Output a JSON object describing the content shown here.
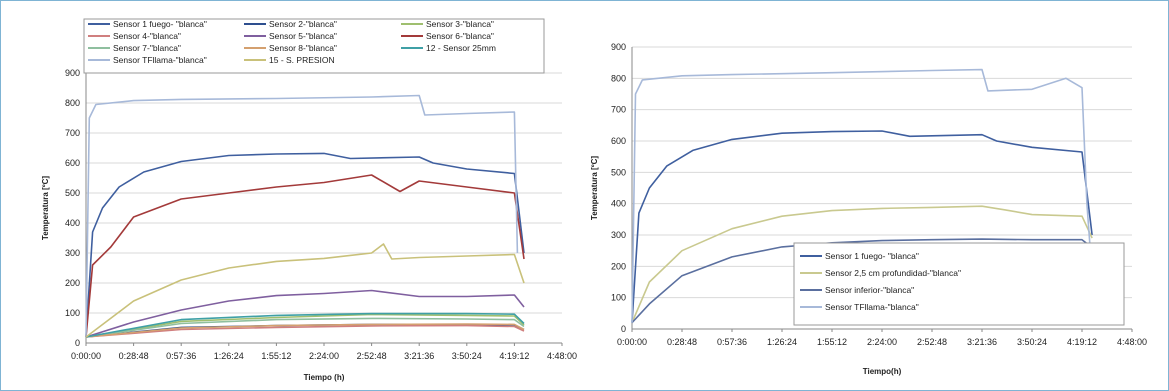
{
  "chart_data": [
    {
      "type": "line",
      "title": "",
      "xlabel": "Tiempo (h)",
      "ylabel": "Temperatura [ºC]",
      "ylim": [
        0,
        900
      ],
      "xlim_seconds": [
        0,
        17280
      ],
      "x_ticks": [
        "0:00:00",
        "0:28:48",
        "0:57:36",
        "1:26:24",
        "1:55:12",
        "2:24:00",
        "2:52:48",
        "3:21:36",
        "3:50:24",
        "4:19:12",
        "4:48:00"
      ],
      "y_ticks": [
        0,
        100,
        200,
        300,
        400,
        500,
        600,
        700,
        800,
        900
      ],
      "grid": true,
      "legend_position": "top",
      "series": [
        {
          "name": "Sensor 1 fuego- \"blanca\"",
          "color": "#3f5f9f",
          "points": [
            [
              "0:00:00",
              20
            ],
            [
              "0:04:00",
              370
            ],
            [
              "0:10:00",
              450
            ],
            [
              "0:20:00",
              520
            ],
            [
              "0:35:00",
              570
            ],
            [
              "0:57:36",
              605
            ],
            [
              "1:26:24",
              625
            ],
            [
              "1:55:12",
              630
            ],
            [
              "2:24:00",
              632
            ],
            [
              "2:40:00",
              615
            ],
            [
              "3:21:36",
              620
            ],
            [
              "3:30:00",
              600
            ],
            [
              "3:50:24",
              580
            ],
            [
              "4:19:12",
              565
            ],
            [
              "4:25:00",
              300
            ]
          ]
        },
        {
          "name": "Sensor 2-\"blanca\"",
          "color": "#2e4f8f",
          "points": [
            [
              "0:00:00",
              20
            ],
            [
              "0:57:36",
              52
            ],
            [
              "1:55:12",
              58
            ],
            [
              "2:52:48",
              62
            ],
            [
              "3:50:24",
              62
            ],
            [
              "4:19:12",
              60
            ],
            [
              "4:25:00",
              45
            ]
          ]
        },
        {
          "name": "Sensor 3-\"blanca\"",
          "color": "#9fbf6f",
          "points": [
            [
              "0:00:00",
              20
            ],
            [
              "0:57:36",
              72
            ],
            [
              "1:55:12",
              85
            ],
            [
              "2:52:48",
              95
            ],
            [
              "3:50:24",
              92
            ],
            [
              "4:19:12",
              90
            ],
            [
              "4:25:00",
              60
            ]
          ]
        },
        {
          "name": "Sensor 4-\"blanca\"",
          "color": "#d07f7f",
          "points": [
            [
              "0:00:00",
              20
            ],
            [
              "0:57:36",
              45
            ],
            [
              "1:55:12",
              52
            ],
            [
              "2:52:48",
              57
            ],
            [
              "3:50:24",
              58
            ],
            [
              "4:19:12",
              55
            ],
            [
              "4:25:00",
              40
            ]
          ]
        },
        {
          "name": "Sensor 5-\"blanca\"",
          "color": "#7f5f9f",
          "points": [
            [
              "0:00:00",
              20
            ],
            [
              "0:28:48",
              70
            ],
            [
              "0:57:36",
              110
            ],
            [
              "1:26:24",
              140
            ],
            [
              "1:55:12",
              158
            ],
            [
              "2:24:00",
              165
            ],
            [
              "2:52:48",
              175
            ],
            [
              "3:21:36",
              155
            ],
            [
              "3:50:24",
              155
            ],
            [
              "4:19:12",
              160
            ],
            [
              "4:25:00",
              120
            ]
          ]
        },
        {
          "name": "Sensor 6-\"blanca\"",
          "color": "#a33a3a",
          "points": [
            [
              "0:00:00",
              20
            ],
            [
              "0:04:00",
              260
            ],
            [
              "0:15:00",
              320
            ],
            [
              "0:28:48",
              420
            ],
            [
              "0:57:36",
              480
            ],
            [
              "1:26:24",
              500
            ],
            [
              "1:55:12",
              520
            ],
            [
              "2:24:00",
              535
            ],
            [
              "2:52:48",
              560
            ],
            [
              "3:10:00",
              505
            ],
            [
              "3:21:36",
              540
            ],
            [
              "3:50:24",
              520
            ],
            [
              "4:19:12",
              500
            ],
            [
              "4:25:00",
              280
            ]
          ]
        },
        {
          "name": "Sensor 7-\"blanca\"",
          "color": "#8fbf9f",
          "points": [
            [
              "0:00:00",
              20
            ],
            [
              "0:57:36",
              65
            ],
            [
              "1:55:12",
              78
            ],
            [
              "2:52:48",
              82
            ],
            [
              "3:50:24",
              80
            ],
            [
              "4:19:12",
              78
            ],
            [
              "4:25:00",
              55
            ]
          ]
        },
        {
          "name": "Sensor 8-\"blanca\"",
          "color": "#d4a06f",
          "points": [
            [
              "0:00:00",
              20
            ],
            [
              "0:57:36",
              50
            ],
            [
              "1:55:12",
              58
            ],
            [
              "2:52:48",
              62
            ],
            [
              "3:50:24",
              63
            ],
            [
              "4:19:12",
              62
            ],
            [
              "4:25:00",
              45
            ]
          ]
        },
        {
          "name": "12 - Sensor 25mm",
          "color": "#3fa0a6",
          "points": [
            [
              "0:00:00",
              20
            ],
            [
              "0:57:36",
              78
            ],
            [
              "1:55:12",
              92
            ],
            [
              "2:52:48",
              98
            ],
            [
              "3:50:24",
              98
            ],
            [
              "4:19:12",
              96
            ],
            [
              "4:25:00",
              65
            ]
          ]
        },
        {
          "name": "Sensor TFllama-\"blanca\"",
          "color": "#a7b9d9",
          "points": [
            [
              "0:00:00",
              20
            ],
            [
              "0:02:00",
              750
            ],
            [
              "0:06:00",
              795
            ],
            [
              "0:28:48",
              808
            ],
            [
              "0:57:36",
              812
            ],
            [
              "1:55:12",
              815
            ],
            [
              "2:52:48",
              820
            ],
            [
              "3:21:36",
              825
            ],
            [
              "3:25:00",
              760
            ],
            [
              "3:50:24",
              765
            ],
            [
              "4:19:12",
              770
            ],
            [
              "4:21:00",
              300
            ]
          ]
        },
        {
          "name": "15 - S. PRESION",
          "color": "#c9c17a",
          "points": [
            [
              "0:00:00",
              20
            ],
            [
              "0:28:48",
              140
            ],
            [
              "0:57:36",
              210
            ],
            [
              "1:26:24",
              250
            ],
            [
              "1:55:12",
              272
            ],
            [
              "2:24:00",
              282
            ],
            [
              "2:52:48",
              300
            ],
            [
              "3:00:00",
              330
            ],
            [
              "3:05:00",
              280
            ],
            [
              "3:21:36",
              285
            ],
            [
              "3:50:24",
              290
            ],
            [
              "4:19:12",
              295
            ],
            [
              "4:25:00",
              200
            ]
          ]
        }
      ]
    },
    {
      "type": "line",
      "title": "",
      "xlabel": "Tiempo(h)",
      "ylabel": "Temperatura [ºC]",
      "ylim": [
        0,
        900
      ],
      "xlim_seconds": [
        0,
        17280
      ],
      "x_ticks": [
        "0:00:00",
        "0:28:48",
        "0:57:36",
        "1:26:24",
        "1:55:12",
        "2:24:00",
        "2:52:48",
        "3:21:36",
        "3:50:24",
        "4:19:12",
        "4:48:00"
      ],
      "y_ticks": [
        0,
        100,
        200,
        300,
        400,
        500,
        600,
        700,
        800,
        900
      ],
      "grid": true,
      "legend_position": "bottom-right",
      "series": [
        {
          "name": "Sensor 1 fuego- \"blanca\"",
          "color": "#3f5f9f",
          "points": [
            [
              "0:00:00",
              20
            ],
            [
              "0:04:00",
              370
            ],
            [
              "0:10:00",
              450
            ],
            [
              "0:20:00",
              520
            ],
            [
              "0:35:00",
              570
            ],
            [
              "0:57:36",
              605
            ],
            [
              "1:26:24",
              625
            ],
            [
              "1:55:12",
              630
            ],
            [
              "2:24:00",
              632
            ],
            [
              "2:40:00",
              615
            ],
            [
              "3:21:36",
              620
            ],
            [
              "3:30:00",
              600
            ],
            [
              "3:50:24",
              580
            ],
            [
              "4:19:12",
              565
            ],
            [
              "4:25:00",
              300
            ]
          ]
        },
        {
          "name": "Sensor 2,5 cm profundidad-\"blanca\"",
          "color": "#c9c98f",
          "points": [
            [
              "0:00:00",
              20
            ],
            [
              "0:10:00",
              150
            ],
            [
              "0:28:48",
              250
            ],
            [
              "0:57:36",
              320
            ],
            [
              "1:26:24",
              360
            ],
            [
              "1:55:12",
              378
            ],
            [
              "2:24:00",
              385
            ],
            [
              "2:52:48",
              388
            ],
            [
              "3:21:36",
              392
            ],
            [
              "3:35:00",
              380
            ],
            [
              "3:50:24",
              365
            ],
            [
              "4:19:12",
              360
            ],
            [
              "4:25:00",
              290
            ]
          ]
        },
        {
          "name": "Sensor inferior-\"blanca\"",
          "color": "#5a6f9f",
          "points": [
            [
              "0:00:00",
              20
            ],
            [
              "0:10:00",
              80
            ],
            [
              "0:28:48",
              170
            ],
            [
              "0:57:36",
              230
            ],
            [
              "1:26:24",
              262
            ],
            [
              "1:55:12",
              275
            ],
            [
              "2:24:00",
              282
            ],
            [
              "2:52:48",
              285
            ],
            [
              "3:21:36",
              287
            ],
            [
              "3:50:24",
              285
            ],
            [
              "4:19:12",
              285
            ],
            [
              "4:25:00",
              260
            ]
          ]
        },
        {
          "name": "Sensor TFllama-\"blanca\"",
          "color": "#a7b9d9",
          "points": [
            [
              "0:00:00",
              20
            ],
            [
              "0:02:00",
              750
            ],
            [
              "0:06:00",
              795
            ],
            [
              "0:28:48",
              808
            ],
            [
              "0:57:36",
              812
            ],
            [
              "1:55:12",
              818
            ],
            [
              "2:52:48",
              825
            ],
            [
              "3:21:36",
              828
            ],
            [
              "3:25:00",
              760
            ],
            [
              "3:50:24",
              765
            ],
            [
              "4:10:00",
              800
            ],
            [
              "4:19:12",
              770
            ],
            [
              "4:22:00",
              400
            ],
            [
              "4:26:00",
              100
            ]
          ]
        }
      ]
    }
  ]
}
